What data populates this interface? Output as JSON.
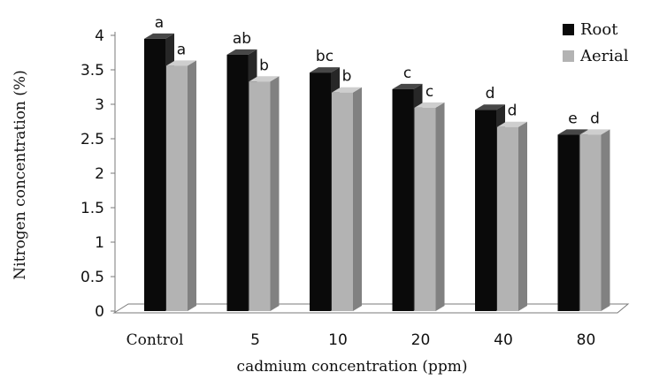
{
  "chart_data": {
    "type": "bar",
    "title": "",
    "xlabel": "cadmium concentration (ppm)",
    "ylabel": "Nitrogen concentration (%)",
    "ylim": [
      0,
      4
    ],
    "yticks": [
      "0",
      "0.5",
      "1",
      "1.5",
      "2",
      "2.5",
      "3",
      "3.5",
      "4"
    ],
    "categories": [
      "Control",
      "5",
      "10",
      "20",
      "40",
      "80"
    ],
    "series": [
      {
        "name": "Root",
        "color": "#0a0a0a",
        "values": [
          3.95,
          3.72,
          3.46,
          3.22,
          2.92,
          2.56
        ],
        "letters": [
          "a",
          "ab",
          "bc",
          "c",
          "d",
          "e"
        ]
      },
      {
        "name": "Aerial",
        "color": "#b3b3b3",
        "values": [
          3.56,
          3.33,
          3.17,
          2.95,
          2.67,
          2.56
        ],
        "letters": [
          "a",
          "b",
          "b",
          "c",
          "d",
          "d"
        ]
      }
    ],
    "legend_position": "top-right",
    "grid": false
  }
}
